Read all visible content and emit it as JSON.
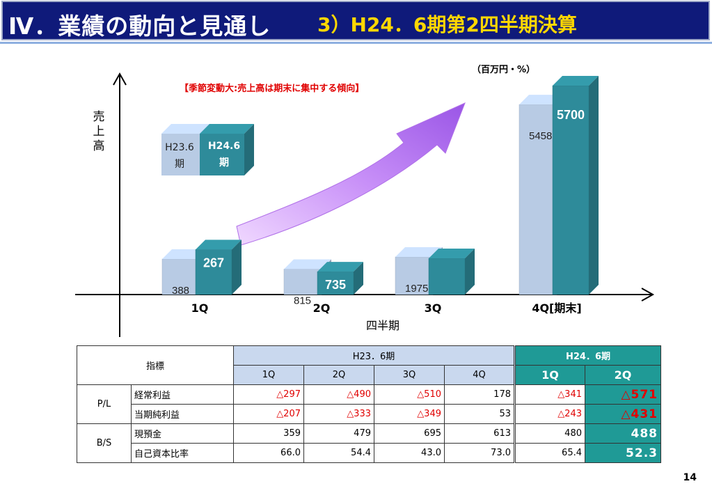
{
  "header": {
    "section": "Ⅳ．業績の動向と見通し",
    "subtitle": "3）H24．6期第2四半期決算"
  },
  "chart_data": {
    "type": "bar",
    "unit_label": "（百万円・%）",
    "annotation": "【季節変動大:売上高は期末に集中する傾向】",
    "ylabel": "売上高",
    "xlabel": "四半期",
    "categories": [
      "1Q",
      "2Q",
      "3Q",
      "4Q[期末]"
    ],
    "series": [
      {
        "name": "H23.6期",
        "values": [
          388,
          815,
          1975,
          5458
        ],
        "color": "#b8cbe4"
      },
      {
        "name": "H24.6期",
        "values": [
          267,
          735,
          null,
          null
        ],
        "color": "#2e8b9a",
        "labels": [
          "267",
          "735",
          "",
          "5700"
        ]
      }
    ],
    "bar_heights_visual": [
      null,
      null,
      null,
      5700
    ],
    "legend_items": [
      "H23.6期",
      "H24.6期"
    ],
    "value_labels_h23": [
      "388",
      "815",
      "1975",
      "5458"
    ],
    "value_labels_h24": [
      "267",
      "735",
      "",
      "5700"
    ]
  },
  "table": {
    "header_label": "指標",
    "h23_label": "H23．6期",
    "h24_label": "H24．6期",
    "quarters_h23": [
      "1Q",
      "2Q",
      "3Q",
      "4Q"
    ],
    "quarters_h24": [
      "1Q",
      "2Q"
    ],
    "groups": [
      {
        "name": "P/L",
        "rows": [
          {
            "label": "経常利益",
            "h23": [
              "△297",
              "△490",
              "△510",
              "178"
            ],
            "h24": [
              "△341",
              "△571"
            ]
          },
          {
            "label": "当期純利益",
            "h23": [
              "△207",
              "△333",
              "△349",
              "53"
            ],
            "h24": [
              "△243",
              "△431"
            ]
          }
        ]
      },
      {
        "name": "B/S",
        "rows": [
          {
            "label": "現預金",
            "h23": [
              "359",
              "479",
              "695",
              "613"
            ],
            "h24": [
              "480",
              "488"
            ]
          },
          {
            "label": "自己資本比率",
            "h23": [
              "66.0",
              "54.4",
              "43.0",
              "73.0"
            ],
            "h24": [
              "65.4",
              "52.3"
            ]
          }
        ]
      }
    ]
  },
  "page_number": "14",
  "colors": {
    "banner_bg": "#0f1a7a",
    "subtitle": "#ffd700",
    "h23_bar": "#b8cbe4",
    "h24_bar": "#2e8b9a",
    "negative": "#e00000",
    "highlight": "#1f9a96",
    "arrow": "#c080f0"
  }
}
